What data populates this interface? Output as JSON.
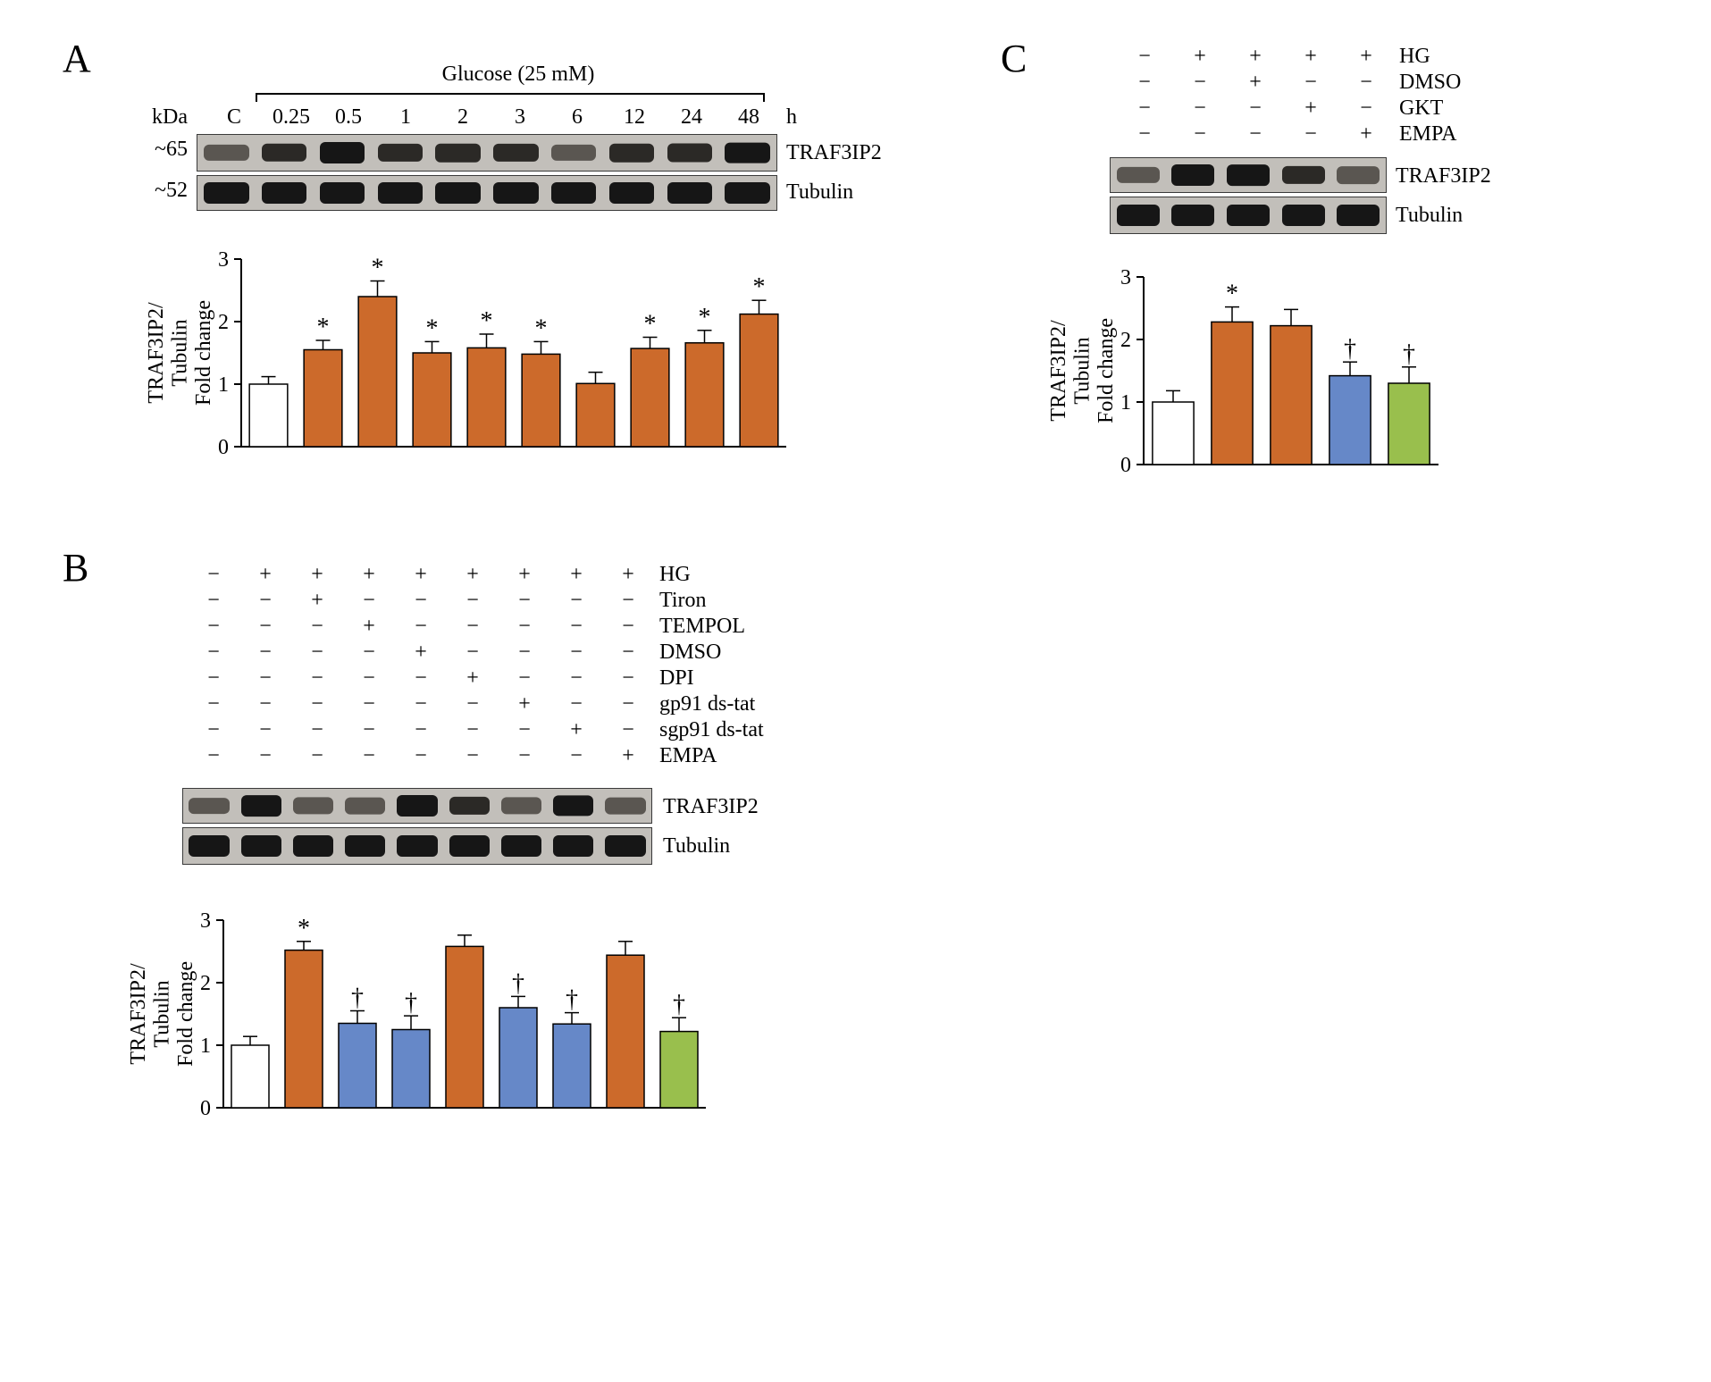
{
  "colors": {
    "control_fill": "#ffffff",
    "orange_fill": "#cc6a2b",
    "blue_fill": "#6688c8",
    "green_fill": "#99bf4d",
    "bar_stroke": "#000000",
    "axis": "#000000",
    "blot_bg": "#c3c0bb",
    "band_dark": "#141414"
  },
  "panelA": {
    "label": "A",
    "title": "Glucose (25 mM)",
    "kda_header": "kDa",
    "kda_rows": [
      "~65",
      "~52"
    ],
    "lane_headers": [
      "C",
      "0.25",
      "0.5",
      "1",
      "2",
      "3",
      "6",
      "12",
      "24",
      "48"
    ],
    "time_unit": "h",
    "row_labels": [
      "TRAF3IP2",
      "Tubulin"
    ],
    "chart": {
      "ylabel": "TRAF3IP2/\nTubulin\nFold change",
      "ylabel_lines": [
        "TRAF3IP2/",
        "Tubulin",
        "Fold change"
      ],
      "ymax": 3,
      "ytick_step": 1,
      "bars": [
        {
          "h": 1.0,
          "err": 0.12,
          "fill": "control",
          "sig": ""
        },
        {
          "h": 1.55,
          "err": 0.15,
          "fill": "orange",
          "sig": "*"
        },
        {
          "h": 2.4,
          "err": 0.25,
          "fill": "orange",
          "sig": "*"
        },
        {
          "h": 1.5,
          "err": 0.18,
          "fill": "orange",
          "sig": "*"
        },
        {
          "h": 1.58,
          "err": 0.22,
          "fill": "orange",
          "sig": "*"
        },
        {
          "h": 1.48,
          "err": 0.2,
          "fill": "orange",
          "sig": "*"
        },
        {
          "h": 1.01,
          "err": 0.18,
          "fill": "orange",
          "sig": ""
        },
        {
          "h": 1.57,
          "err": 0.18,
          "fill": "orange",
          "sig": "*"
        },
        {
          "h": 1.66,
          "err": 0.2,
          "fill": "orange",
          "sig": "*"
        },
        {
          "h": 2.12,
          "err": 0.22,
          "fill": "orange",
          "sig": "*"
        }
      ]
    }
  },
  "panelB": {
    "label": "B",
    "treatments": [
      "HG",
      "Tiron",
      "TEMPOL",
      "DMSO",
      "DPI",
      "gp91 ds-tat",
      "sgp91 ds-tat",
      "EMPA"
    ],
    "matrix": [
      [
        "−",
        "+",
        "+",
        "+",
        "+",
        "+",
        "+",
        "+",
        "+"
      ],
      [
        "−",
        "−",
        "+",
        "−",
        "−",
        "−",
        "−",
        "−",
        "−"
      ],
      [
        "−",
        "−",
        "−",
        "+",
        "−",
        "−",
        "−",
        "−",
        "−"
      ],
      [
        "−",
        "−",
        "−",
        "−",
        "+",
        "−",
        "−",
        "−",
        "−"
      ],
      [
        "−",
        "−",
        "−",
        "−",
        "−",
        "+",
        "−",
        "−",
        "−"
      ],
      [
        "−",
        "−",
        "−",
        "−",
        "−",
        "−",
        "+",
        "−",
        "−"
      ],
      [
        "−",
        "−",
        "−",
        "−",
        "−",
        "−",
        "−",
        "+",
        "−"
      ],
      [
        "−",
        "−",
        "−",
        "−",
        "−",
        "−",
        "−",
        "−",
        "+"
      ]
    ],
    "row_labels": [
      "TRAF3IP2",
      "Tubulin"
    ],
    "chart": {
      "ylabel_lines": [
        "TRAF3IP2/",
        "Tubulin",
        "Fold change"
      ],
      "ymax": 3,
      "ytick_step": 1,
      "bars": [
        {
          "h": 1.0,
          "err": 0.14,
          "fill": "control",
          "sig": ""
        },
        {
          "h": 2.52,
          "err": 0.14,
          "fill": "orange",
          "sig": "*"
        },
        {
          "h": 1.35,
          "err": 0.2,
          "fill": "blue",
          "sig": "†"
        },
        {
          "h": 1.25,
          "err": 0.22,
          "fill": "blue",
          "sig": "†"
        },
        {
          "h": 2.58,
          "err": 0.18,
          "fill": "orange",
          "sig": ""
        },
        {
          "h": 1.6,
          "err": 0.18,
          "fill": "blue",
          "sig": "†"
        },
        {
          "h": 1.34,
          "err": 0.18,
          "fill": "blue",
          "sig": "†"
        },
        {
          "h": 2.44,
          "err": 0.22,
          "fill": "orange",
          "sig": ""
        },
        {
          "h": 1.22,
          "err": 0.22,
          "fill": "green",
          "sig": "†"
        }
      ]
    }
  },
  "panelC": {
    "label": "C",
    "treatments": [
      "HG",
      "DMSO",
      "GKT",
      "EMPA"
    ],
    "matrix": [
      [
        "−",
        "+",
        "+",
        "+",
        "+"
      ],
      [
        "−",
        "−",
        "+",
        "−",
        "−"
      ],
      [
        "−",
        "−",
        "−",
        "+",
        "−"
      ],
      [
        "−",
        "−",
        "−",
        "−",
        "+"
      ]
    ],
    "row_labels": [
      "TRAF3IP2",
      "Tubulin"
    ],
    "chart": {
      "ylabel_lines": [
        "TRAF3IP2/",
        "Tubulin",
        "Fold change"
      ],
      "ymax": 3,
      "ytick_step": 1,
      "bars": [
        {
          "h": 1.0,
          "err": 0.18,
          "fill": "control",
          "sig": ""
        },
        {
          "h": 2.28,
          "err": 0.24,
          "fill": "orange",
          "sig": "*"
        },
        {
          "h": 2.22,
          "err": 0.26,
          "fill": "orange",
          "sig": ""
        },
        {
          "h": 1.42,
          "err": 0.22,
          "fill": "blue",
          "sig": "†"
        },
        {
          "h": 1.3,
          "err": 0.26,
          "fill": "green",
          "sig": "†"
        }
      ]
    }
  }
}
